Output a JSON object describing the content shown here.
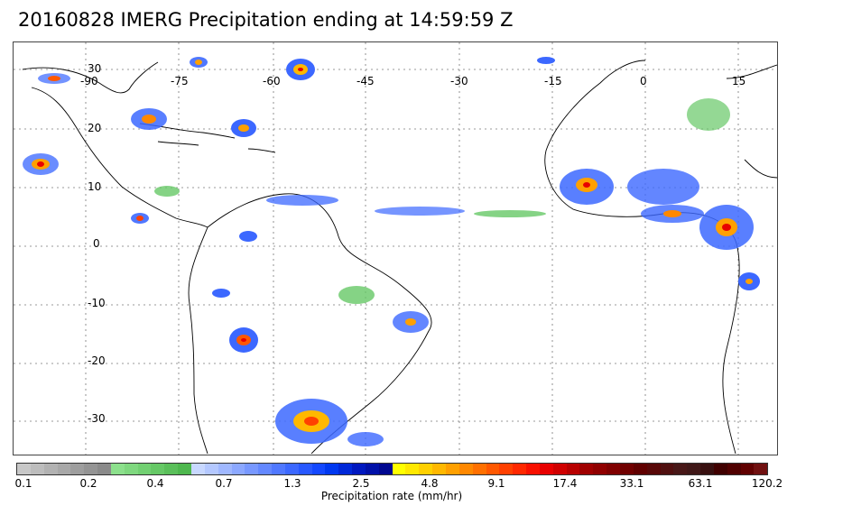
{
  "title": "20160828 IMERG Precipitation ending at 14:59:59 Z",
  "map": {
    "lon_labels": [
      "-90",
      "-75",
      "-60",
      "-45",
      "-30",
      "-15",
      "0",
      "15"
    ],
    "lat_labels": [
      "30",
      "20",
      "10",
      "0",
      "-10",
      "-20",
      "-30"
    ],
    "gridlines": "dotted"
  },
  "colorbar": {
    "label": "Precipitation rate (mm/hr)",
    "tick_labels": [
      "0.1",
      "0.2",
      "0.4",
      "0.7",
      "1.3",
      "2.5",
      "4.8",
      "9.1",
      "17.4",
      "33.1",
      "63.1",
      "120.2"
    ],
    "colors": [
      "#c8c8c8",
      "#bdbdbd",
      "#b2b2b2",
      "#a8a8a8",
      "#9e9e9e",
      "#949494",
      "#8a8a8a",
      "#8ce08c",
      "#7fd87f",
      "#72d072",
      "#66c866",
      "#5abf5a",
      "#4eb74e",
      "#c8d8ff",
      "#b4c8ff",
      "#a0b8ff",
      "#8ca8ff",
      "#7898ff",
      "#6488ff",
      "#5078ff",
      "#3c68ff",
      "#2858ff",
      "#1448ff",
      "#0038f0",
      "#0028d8",
      "#0018c0",
      "#0010a8",
      "#000890",
      "#ffff00",
      "#ffe800",
      "#ffd000",
      "#ffb800",
      "#ffa000",
      "#ff8800",
      "#ff7000",
      "#ff5800",
      "#ff4000",
      "#ff2800",
      "#f81000",
      "#e80000",
      "#d00000",
      "#b80000",
      "#a00000",
      "#900000",
      "#800000",
      "#700000",
      "#600000",
      "#580808",
      "#501010",
      "#481818",
      "#401818",
      "#381010",
      "#400000",
      "#500000",
      "#600000",
      "#701010"
    ]
  }
}
